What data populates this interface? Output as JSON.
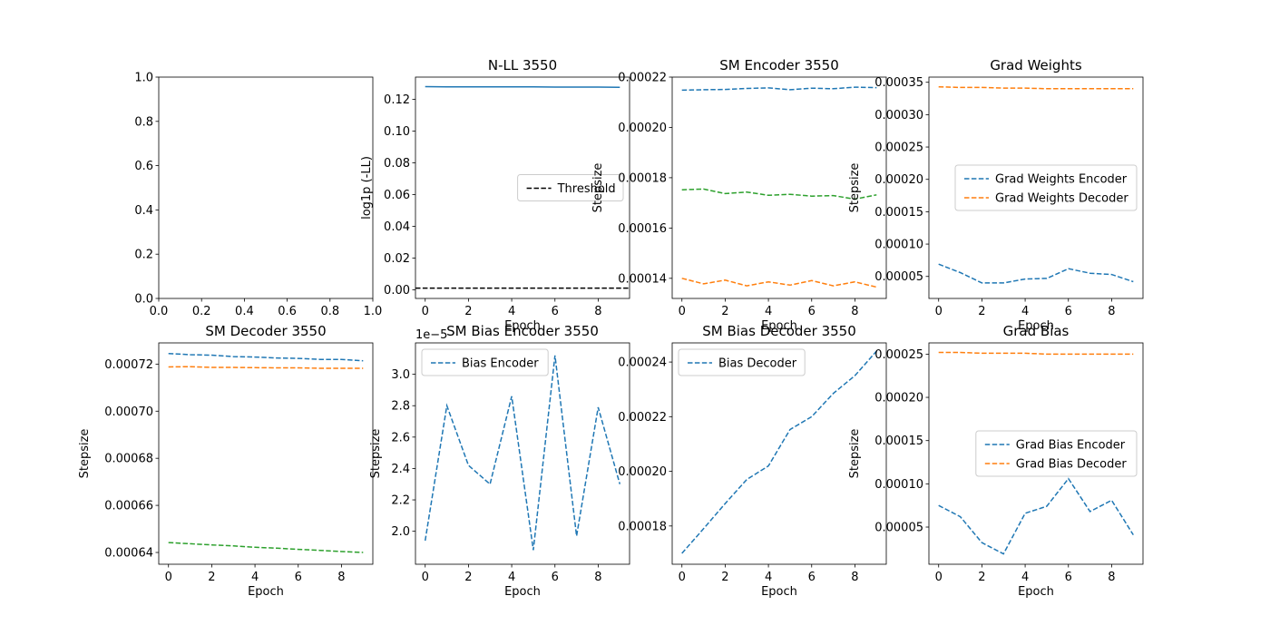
{
  "chart_data": [
    {
      "id": "blank",
      "type": "line",
      "title": "",
      "xlabel": "",
      "ylabel": "",
      "xlim": [
        0,
        1
      ],
      "ylim": [
        0,
        1
      ],
      "xticks": [
        0.0,
        0.2,
        0.4,
        0.6,
        0.8,
        1.0
      ],
      "xtick_labels": [
        "0.0",
        "0.2",
        "0.4",
        "0.6",
        "0.8",
        "1.0"
      ],
      "yticks": [
        0.0,
        0.2,
        0.4,
        0.6,
        0.8,
        1.0
      ],
      "ytick_labels": [
        "0.0",
        "0.2",
        "0.4",
        "0.6",
        "0.8",
        "1.0"
      ],
      "series": []
    },
    {
      "id": "nll",
      "type": "line",
      "title": "N-LL 3550",
      "xlabel": "Epoch",
      "ylabel": "log1p (-LL)",
      "xlim": [
        -0.45,
        9.45
      ],
      "ylim": [
        -0.0055,
        0.134
      ],
      "xticks": [
        0,
        2,
        4,
        6,
        8
      ],
      "xtick_labels": [
        "0",
        "2",
        "4",
        "6",
        "8"
      ],
      "yticks": [
        0.0,
        0.02,
        0.04,
        0.06,
        0.08,
        0.1,
        0.12
      ],
      "ytick_labels": [
        "0.00",
        "0.02",
        "0.04",
        "0.06",
        "0.08",
        "0.10",
        "0.12"
      ],
      "legend": {
        "position": "center-right",
        "entries": [
          1
        ]
      },
      "series": [
        {
          "x": [
            0,
            1,
            2,
            3,
            4,
            5,
            6,
            7,
            8,
            9
          ],
          "values": [
            0.128,
            0.1279,
            0.1279,
            0.1278,
            0.1278,
            0.1278,
            0.1277,
            0.1277,
            0.1277,
            0.1276
          ],
          "color": "#1f77b4",
          "dash": "solid"
        },
        {
          "name": "Threshold",
          "x": [
            -0.45,
            9.45
          ],
          "values": [
            0.001,
            0.001
          ],
          "color": "#000000",
          "dash": "dashed"
        }
      ]
    },
    {
      "id": "sm-encoder",
      "type": "line",
      "title": "SM Encoder 3550",
      "xlabel": "Epoch",
      "ylabel": "Stepsize",
      "xlim": [
        -0.45,
        9.45
      ],
      "ylim": [
        0.000132,
        0.00022
      ],
      "xticks": [
        0,
        2,
        4,
        6,
        8
      ],
      "xtick_labels": [
        "0",
        "2",
        "4",
        "6",
        "8"
      ],
      "yticks": [
        0.00014,
        0.00016,
        0.00018,
        0.0002,
        0.00022
      ],
      "ytick_labels": [
        "0.00014",
        "0.00016",
        "0.00018",
        "0.00020",
        "0.00022"
      ],
      "series": [
        {
          "x": [
            0,
            1,
            2,
            3,
            4,
            5,
            6,
            7,
            8,
            9
          ],
          "values": [
            0.0002148,
            0.000215,
            0.0002151,
            0.0002155,
            0.0002157,
            0.000215,
            0.0002156,
            0.0002154,
            0.000216,
            0.0002158
          ],
          "color": "#1f77b4",
          "dash": "dashed"
        },
        {
          "x": [
            0,
            1,
            2,
            3,
            4,
            5,
            6,
            7,
            8,
            9
          ],
          "values": [
            0.00014,
            0.0001378,
            0.0001393,
            0.000137,
            0.0001386,
            0.0001373,
            0.0001391,
            0.000137,
            0.0001386,
            0.0001365
          ],
          "color": "#ff7f0e",
          "dash": "dashed"
        },
        {
          "x": [
            0,
            1,
            2,
            3,
            4,
            5,
            6,
            7,
            8,
            9
          ],
          "values": [
            0.0001752,
            0.0001755,
            0.0001737,
            0.0001743,
            0.000173,
            0.0001734,
            0.0001727,
            0.0001729,
            0.0001715,
            0.0001732
          ],
          "color": "#2ca02c",
          "dash": "dashed"
        }
      ]
    },
    {
      "id": "grad-weights",
      "type": "line",
      "title": "Grad Weights",
      "xlabel": "Epoch",
      "ylabel": "Stepsize",
      "xlim": [
        -0.45,
        9.45
      ],
      "ylim": [
        1.6e-05,
        0.000358
      ],
      "xticks": [
        0,
        2,
        4,
        6,
        8
      ],
      "xtick_labels": [
        "0",
        "2",
        "4",
        "6",
        "8"
      ],
      "yticks": [
        5e-05,
        0.0001,
        0.00015,
        0.0002,
        0.00025,
        0.0003,
        0.00035
      ],
      "ytick_labels": [
        "0.00005",
        "0.00010",
        "0.00015",
        "0.00020",
        "0.00025",
        "0.00030",
        "0.00035"
      ],
      "legend": {
        "position": "center-right",
        "entries": [
          0,
          1
        ]
      },
      "series": [
        {
          "name": "Grad Weights Encoder",
          "x": [
            0,
            1,
            2,
            3,
            4,
            5,
            6,
            7,
            8,
            9
          ],
          "values": [
            6.9e-05,
            5.6e-05,
            4e-05,
            4e-05,
            4.6e-05,
            4.7e-05,
            6.2e-05,
            5.5e-05,
            5.3e-05,
            4.2e-05
          ],
          "color": "#1f77b4",
          "dash": "dashed"
        },
        {
          "name": "Grad Weights Decoder",
          "x": [
            0,
            1,
            2,
            3,
            4,
            5,
            6,
            7,
            8,
            9
          ],
          "values": [
            0.000343,
            0.000342,
            0.000342,
            0.000341,
            0.000341,
            0.00034,
            0.00034,
            0.00034,
            0.00034,
            0.00034
          ],
          "color": "#ff7f0e",
          "dash": "dashed"
        }
      ]
    },
    {
      "id": "sm-decoder",
      "type": "line",
      "title": "SM Decoder 3550",
      "xlabel": "Epoch",
      "ylabel": "Stepsize",
      "xlim": [
        -0.45,
        9.45
      ],
      "ylim": [
        0.000635,
        0.000729
      ],
      "xticks": [
        0,
        2,
        4,
        6,
        8
      ],
      "xtick_labels": [
        "0",
        "2",
        "4",
        "6",
        "8"
      ],
      "yticks": [
        0.00064,
        0.00066,
        0.00068,
        0.0007,
        0.00072
      ],
      "ytick_labels": [
        "0.00064",
        "0.00066",
        "0.00068",
        "0.00070",
        "0.00072"
      ],
      "series": [
        {
          "x": [
            0,
            1,
            2,
            3,
            4,
            5,
            6,
            7,
            8,
            9
          ],
          "values": [
            0.0007245,
            0.000724,
            0.0007238,
            0.0007232,
            0.000723,
            0.0007226,
            0.0007224,
            0.000722,
            0.000722,
            0.0007214
          ],
          "color": "#1f77b4",
          "dash": "dashed"
        },
        {
          "x": [
            0,
            1,
            2,
            3,
            4,
            5,
            6,
            7,
            8,
            9
          ],
          "values": [
            0.0007188,
            0.0007189,
            0.0007186,
            0.0007186,
            0.0007185,
            0.0007184,
            0.0007184,
            0.0007182,
            0.0007182,
            0.0007182
          ],
          "color": "#ff7f0e",
          "dash": "dashed"
        },
        {
          "x": [
            0,
            1,
            2,
            3,
            4,
            5,
            6,
            7,
            8,
            9
          ],
          "values": [
            0.0006442,
            0.0006437,
            0.0006432,
            0.0006428,
            0.0006422,
            0.0006418,
            0.0006413,
            0.0006409,
            0.0006404,
            0.00064
          ],
          "color": "#2ca02c",
          "dash": "dashed"
        }
      ]
    },
    {
      "id": "sm-bias-encoder",
      "type": "line",
      "title": "SM Bias Encoder 3550",
      "xlabel": "Epoch",
      "ylabel": "Stepsize",
      "offset_text": "1e−5",
      "xlim": [
        -0.45,
        9.45
      ],
      "ylim": [
        1.79,
        3.2
      ],
      "xticks": [
        0,
        2,
        4,
        6,
        8
      ],
      "xtick_labels": [
        "0",
        "2",
        "4",
        "6",
        "8"
      ],
      "yticks": [
        2.0,
        2.2,
        2.4,
        2.6,
        2.8,
        3.0
      ],
      "ytick_labels": [
        "2.0",
        "2.2",
        "2.4",
        "2.6",
        "2.8",
        "3.0"
      ],
      "legend": {
        "position": "top-left",
        "entries": [
          0
        ]
      },
      "series": [
        {
          "name": "Bias Encoder",
          "x": [
            0,
            1,
            2,
            3,
            4,
            5,
            6,
            7,
            8,
            9
          ],
          "values": [
            1.94,
            2.8,
            2.42,
            2.3,
            2.86,
            1.88,
            3.12,
            1.97,
            2.79,
            2.3
          ],
          "color": "#1f77b4",
          "dash": "dashed"
        }
      ]
    },
    {
      "id": "sm-bias-decoder",
      "type": "line",
      "title": "SM Bias Decoder 3550",
      "xlabel": "Epoch",
      "ylabel": "",
      "xlim": [
        -0.45,
        9.45
      ],
      "ylim": [
        0.000166,
        0.000247
      ],
      "xticks": [
        0,
        2,
        4,
        6,
        8
      ],
      "xtick_labels": [
        "0",
        "2",
        "4",
        "6",
        "8"
      ],
      "yticks": [
        0.00018,
        0.0002,
        0.00022,
        0.00024
      ],
      "ytick_labels": [
        "0.00018",
        "0.00020",
        "0.00022",
        "0.00024"
      ],
      "legend": {
        "position": "top-left",
        "entries": [
          0
        ]
      },
      "series": [
        {
          "name": "Bias Decoder",
          "x": [
            0,
            1,
            2,
            3,
            4,
            5,
            6,
            7,
            8,
            9
          ],
          "values": [
            0.00017,
            0.000179,
            0.0001882,
            0.000197,
            0.000202,
            0.0002153,
            0.00022,
            0.0002285,
            0.000235,
            0.000244
          ],
          "color": "#1f77b4",
          "dash": "dashed"
        }
      ]
    },
    {
      "id": "grad-bias",
      "type": "line",
      "title": "Grad Bias",
      "xlabel": "Epoch",
      "ylabel": "Stepsize",
      "xlim": [
        -0.45,
        9.45
      ],
      "ylim": [
        7e-06,
        0.000263
      ],
      "xticks": [
        0,
        2,
        4,
        6,
        8
      ],
      "xtick_labels": [
        "0",
        "2",
        "4",
        "6",
        "8"
      ],
      "yticks": [
        5e-05,
        0.0001,
        0.00015,
        0.0002,
        0.00025
      ],
      "ytick_labels": [
        "0.00005",
        "0.00010",
        "0.00015",
        "0.00020",
        "0.00025"
      ],
      "legend": {
        "position": "center-right",
        "entries": [
          0,
          1
        ]
      },
      "series": [
        {
          "name": "Grad Bias Encoder",
          "x": [
            0,
            1,
            2,
            3,
            4,
            5,
            6,
            7,
            8,
            9
          ],
          "values": [
            7.5e-05,
            6.2e-05,
            3.2e-05,
            1.9e-05,
            6.6e-05,
            7.4e-05,
            0.000106,
            6.8e-05,
            8.1e-05,
            4.1e-05
          ],
          "color": "#1f77b4",
          "dash": "dashed"
        },
        {
          "name": "Grad Bias Decoder",
          "x": [
            0,
            1,
            2,
            3,
            4,
            5,
            6,
            7,
            8,
            9
          ],
          "values": [
            0.000252,
            0.000252,
            0.000251,
            0.000251,
            0.000251,
            0.00025,
            0.00025,
            0.00025,
            0.00025,
            0.00025
          ],
          "color": "#ff7f0e",
          "dash": "dashed"
        }
      ]
    }
  ]
}
